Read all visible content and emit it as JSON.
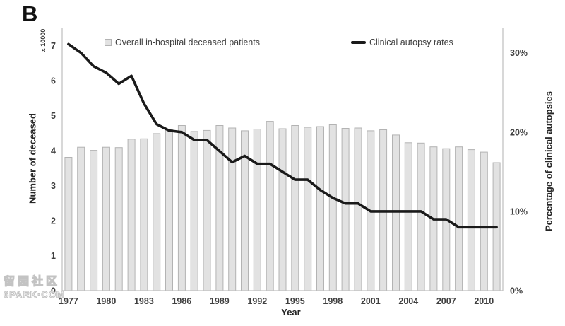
{
  "panel_label": "B",
  "colors": {
    "bar_fill": "#e2e2e2",
    "bar_border": "#b3b3b3",
    "line": "#1a1a1a",
    "axis": "#bfbfbf",
    "tick_text": "#404040",
    "title_text": "#262626"
  },
  "legend": [
    {
      "label": "Overall in-hospital deceased patients",
      "swatch": "bar"
    },
    {
      "label": "Clinical autopsy rates",
      "swatch": "line"
    }
  ],
  "watermark": {
    "line1": "留园社区",
    "line2": "6PARK·COM"
  },
  "chart_data": {
    "type": "bar",
    "subtype": "combo-bar-line-dual-axis",
    "title": "",
    "xlabel": "Year",
    "ylabel_left": "Number of deceased",
    "ylabel_left_note": "x 10000",
    "ylabel_right": "Percentage of clinical autopsies",
    "x": [
      1977,
      1978,
      1979,
      1980,
      1981,
      1982,
      1983,
      1984,
      1985,
      1986,
      1987,
      1988,
      1989,
      1990,
      1991,
      1992,
      1993,
      1994,
      1995,
      1996,
      1997,
      1998,
      1999,
      2000,
      2001,
      2002,
      2003,
      2004,
      2005,
      2006,
      2007,
      2008,
      2009,
      2010,
      2011
    ],
    "xticks": [
      1977,
      1980,
      1983,
      1986,
      1989,
      1992,
      1995,
      1998,
      2001,
      2004,
      2007,
      2010
    ],
    "yticks_left": [
      0,
      1,
      2,
      3,
      4,
      5,
      6,
      7
    ],
    "yticks_right_pct": [
      0,
      10,
      20,
      30
    ],
    "ylim_left": [
      0,
      7.5
    ],
    "ylim_right_pct": [
      0,
      33.1
    ],
    "grid": false,
    "legend_position": "top-inside",
    "series": [
      {
        "name": "Overall in-hospital deceased patients",
        "type": "bar",
        "axis": "left",
        "unit": "x 10000 deceased",
        "values": [
          3.81,
          4.1,
          4.01,
          4.1,
          4.09,
          4.33,
          4.34,
          4.49,
          4.6,
          4.72,
          4.55,
          4.58,
          4.72,
          4.65,
          4.57,
          4.62,
          4.84,
          4.63,
          4.72,
          4.67,
          4.69,
          4.74,
          4.64,
          4.65,
          4.57,
          4.6,
          4.45,
          4.23,
          4.22,
          4.11,
          4.06,
          4.11,
          4.03,
          3.96,
          3.66
        ]
      },
      {
        "name": "Clinical autopsy rates",
        "type": "line",
        "axis": "right",
        "unit": "%",
        "values": [
          31.1,
          30.0,
          28.3,
          27.5,
          26.1,
          27.1,
          23.6,
          21.0,
          20.2,
          20.0,
          19.0,
          19.0,
          17.6,
          16.2,
          17.0,
          16.0,
          16.0,
          15.0,
          14.0,
          14.0,
          12.7,
          11.7,
          11.0,
          11.0,
          10.0,
          10.0,
          10.0,
          10.0,
          10.0,
          9.0,
          9.0,
          8.0,
          8.0,
          8.0,
          8.0
        ]
      }
    ]
  }
}
